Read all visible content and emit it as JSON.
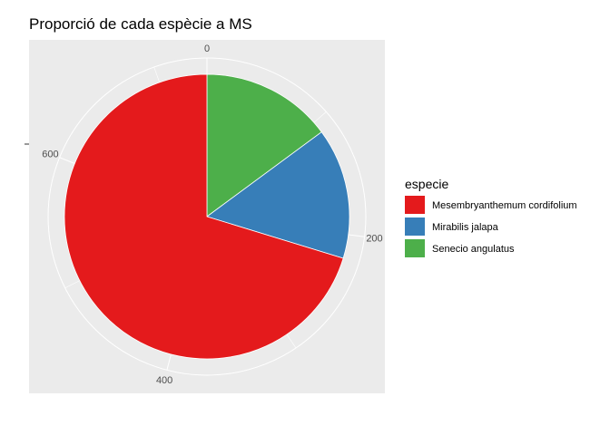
{
  "chart_data": {
    "type": "pie",
    "title": "Proporció de cada espècie a MS",
    "legend_title": "especie",
    "legend_position": "right",
    "grid": true,
    "total": 740,
    "theta_ticks": [
      0,
      200,
      400,
      600
    ],
    "series": [
      {
        "name": "Senecio angulatus",
        "value": 110,
        "color": "#4DAF4A"
      },
      {
        "name": "Mirabilis jalapa",
        "value": 110,
        "color": "#377EB8"
      },
      {
        "name": "Mesembryanthemum cordifolium",
        "value": 520,
        "color": "#E41A1C"
      }
    ],
    "legend_order": [
      "Mesembryanthemum cordifolium",
      "Mirabilis jalapa",
      "Senecio angulatus"
    ]
  }
}
